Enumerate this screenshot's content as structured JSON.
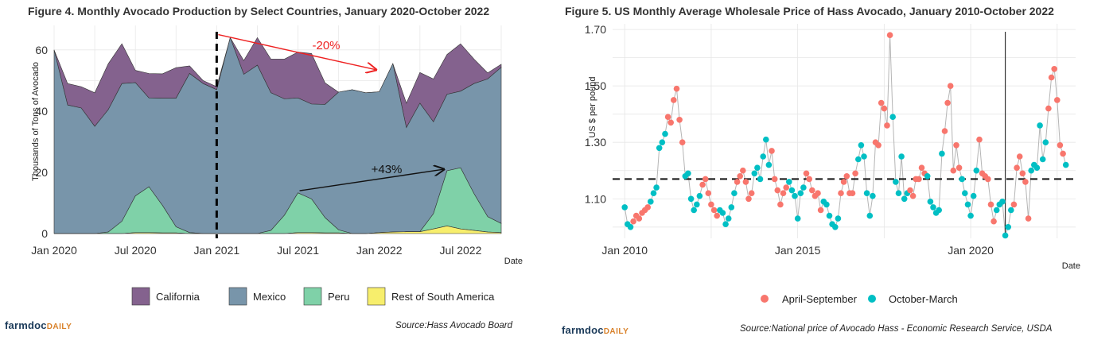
{
  "chart_data": [
    {
      "type": "area",
      "title": "Figure 4. Monthly Avocado Production by Select Countries, January 2020-October 2022",
      "xlabel": "Date",
      "ylabel": "Thousands of Tons of Avocado",
      "ylim": [
        0,
        68
      ],
      "yticks": [
        "0",
        "20",
        "40",
        "60"
      ],
      "xticks": [
        "Jan 2020",
        "Jul 2020",
        "Jan 2021",
        "Jul 2021",
        "Jan 2022",
        "Jul 2022"
      ],
      "x_start": "Jan 2020",
      "x_end": "Oct 2022",
      "stacked": true,
      "grid": true,
      "legend_position": "bottom",
      "series": [
        {
          "name": "Rest of South America",
          "color": "#F7EE6C",
          "values": [
            0,
            0,
            0,
            0,
            0,
            0,
            0.3,
            0.3,
            0.2,
            0.2,
            0,
            0,
            0,
            0,
            0,
            0,
            0,
            0,
            0.3,
            0.3,
            0.2,
            0.2,
            0,
            0,
            0.3,
            0.5,
            0.6,
            0.6,
            1.5,
            2.5,
            1.5,
            1,
            0.5,
            0.3
          ]
        },
        {
          "name": "Peru",
          "color": "#7FD1A8",
          "values": [
            0,
            0,
            0,
            0,
            0.5,
            4,
            12,
            15,
            9,
            2,
            0.3,
            0,
            0,
            0,
            0,
            0,
            1,
            6,
            13,
            11,
            5,
            1,
            0,
            0,
            0,
            0,
            0,
            0,
            5,
            18,
            20,
            12,
            5,
            3
          ]
        },
        {
          "name": "Mexico",
          "color": "#7895AA",
          "values": [
            60,
            42,
            41,
            35,
            40,
            45,
            37,
            29,
            35,
            42,
            52,
            49,
            47,
            64,
            52,
            55,
            45,
            38,
            31,
            31,
            37,
            45,
            47,
            46,
            46,
            55,
            34,
            42,
            30,
            25,
            25,
            36,
            45,
            51
          ]
        },
        {
          "name": "California",
          "color": "#84628E",
          "values": [
            0,
            7,
            7,
            11,
            15,
            13,
            4,
            8,
            8,
            10,
            2.5,
            1,
            1,
            0,
            4.5,
            9,
            11,
            13,
            15,
            16.5,
            7,
            0,
            0,
            0,
            0,
            0,
            8,
            10,
            14,
            13,
            15.5,
            8,
            2,
            1
          ]
        }
      ],
      "annotations": [
        {
          "text": "-20%",
          "color": "#ee2222",
          "from": "Jan 2021",
          "to": "Jan 2022"
        },
        {
          "text": "+43%",
          "color": "#111111",
          "from": "Jul 2021",
          "to": "Jul 2022"
        }
      ],
      "vline": "Jan 2021"
    },
    {
      "type": "scatter",
      "title": "Figure 5. US Monthly Average Wholesale Price of Hass Avocado, January 2010-October 2022",
      "xlabel": "Date",
      "ylabel": "US $ per pound",
      "ylim": [
        0.96,
        1.72
      ],
      "yticks": [
        "1.10",
        "1.30",
        "1.50",
        "1.70"
      ],
      "xticks": [
        "Jan 2010",
        "Jan 2015",
        "Jan 2020"
      ],
      "hline": 1.17,
      "vline": "Jan 2021",
      "grid": true,
      "legend_position": "bottom",
      "series": [
        {
          "name": "April-September",
          "color": "#F8766D"
        },
        {
          "name": "October-March",
          "color": "#00BFC4"
        }
      ],
      "start": [
        2010,
        1
      ],
      "values": [
        1.07,
        1.01,
        1.0,
        1.02,
        1.04,
        1.03,
        1.05,
        1.06,
        1.07,
        1.09,
        1.12,
        1.14,
        1.28,
        1.3,
        1.33,
        1.39,
        1.37,
        1.45,
        1.49,
        1.38,
        1.3,
        1.18,
        1.19,
        1.1,
        1.06,
        1.08,
        1.11,
        1.15,
        1.17,
        1.12,
        1.08,
        1.06,
        1.04,
        1.06,
        1.05,
        1.01,
        1.03,
        1.07,
        1.12,
        1.16,
        1.18,
        1.2,
        1.16,
        1.1,
        1.12,
        1.19,
        1.21,
        1.17,
        1.25,
        1.31,
        1.22,
        1.27,
        1.17,
        1.13,
        1.08,
        1.12,
        1.14,
        1.16,
        1.13,
        1.11,
        1.03,
        1.12,
        1.14,
        1.19,
        1.17,
        1.13,
        1.11,
        1.12,
        1.06,
        1.09,
        1.08,
        1.04,
        1.01,
        1.0,
        1.03,
        1.12,
        1.16,
        1.18,
        1.12,
        1.12,
        1.19,
        1.24,
        1.29,
        1.25,
        1.12,
        1.04,
        1.11,
        1.3,
        1.29,
        1.44,
        1.42,
        1.36,
        1.68,
        1.39,
        1.16,
        1.12,
        1.25,
        1.1,
        1.12,
        1.13,
        1.11,
        1.17,
        1.17,
        1.21,
        1.19,
        1.18,
        1.09,
        1.07,
        1.05,
        1.06,
        1.26,
        1.34,
        1.44,
        1.5,
        1.2,
        1.29,
        1.21,
        1.17,
        1.12,
        1.08,
        1.04,
        1.11,
        1.2,
        1.31,
        1.19,
        1.18,
        1.17,
        1.08,
        1.02,
        1.06,
        1.08,
        1.09,
        0.97,
        1.0,
        1.06,
        1.08,
        1.21,
        1.25,
        1.19,
        1.16,
        1.03,
        1.2,
        1.22,
        1.21,
        1.36,
        1.24,
        1.3,
        1.42,
        1.53,
        1.56,
        1.45,
        1.29,
        1.26,
        1.22
      ]
    }
  ],
  "left": {
    "title": "Figure 4. Monthly Avocado Production by Select Countries, January 2020-October 2022",
    "source": "Source:Hass Avocado Board",
    "brand_main": "farmdoc",
    "brand_sub": "DAILY"
  },
  "right": {
    "title": "Figure 5. US Monthly Average Wholesale Price of Hass Avocado, January 2010-October 2022",
    "source": "Source:National price of Avocado Hass - Economic Research Service, USDA",
    "brand_main": "farmdoc",
    "brand_sub": "DAILY"
  }
}
